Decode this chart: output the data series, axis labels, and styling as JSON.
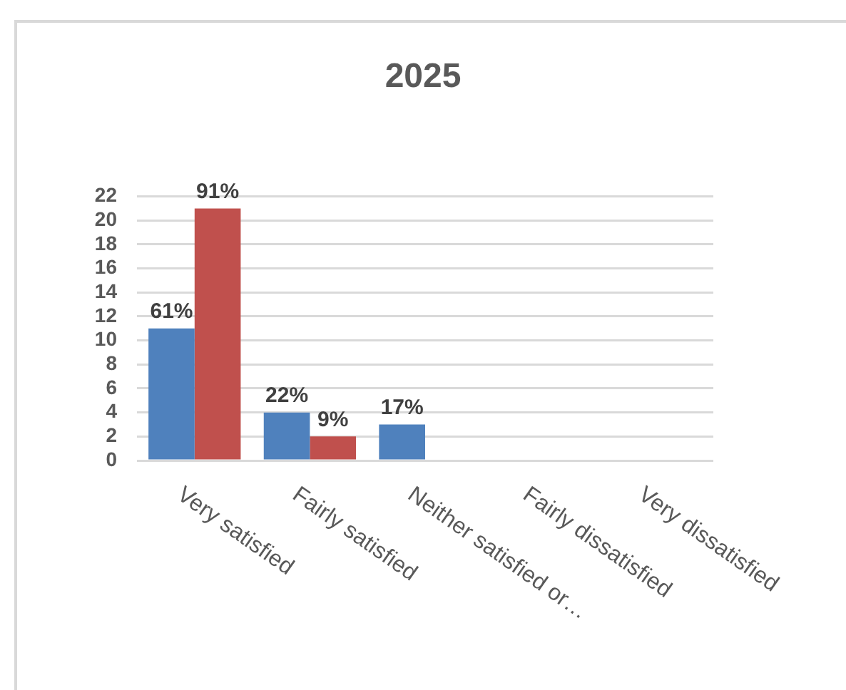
{
  "chart_data": {
    "type": "bar",
    "title": "2025",
    "categories": [
      "Very satisfied",
      "Fairly satisfied",
      "Neither satisfied or…",
      "Fairly dissatisfied",
      "Very dissatisfied"
    ],
    "series": [
      {
        "color": "#4f81bd",
        "values": [
          11,
          4,
          3,
          null,
          null
        ]
      },
      {
        "color": "#c0504d",
        "values": [
          21,
          2,
          null,
          null,
          null
        ]
      }
    ],
    "annotations": [
      {
        "text": "61%",
        "x": "Very satisfied",
        "y": 11
      },
      {
        "text": "91%",
        "y": 21
      },
      {
        "text": "22%",
        "x": "Fairly satisfied",
        "y": 4
      },
      {
        "text": "9%",
        "y": 2
      },
      {
        "text": "17%",
        "x": "Neither satisfied or…",
        "y": 3
      }
    ],
    "ylim": [
      0,
      22
    ],
    "yticks": [
      0,
      2,
      4,
      6,
      8,
      10,
      12,
      14,
      16,
      18,
      20,
      22
    ],
    "grid": "y",
    "legend": false
  }
}
